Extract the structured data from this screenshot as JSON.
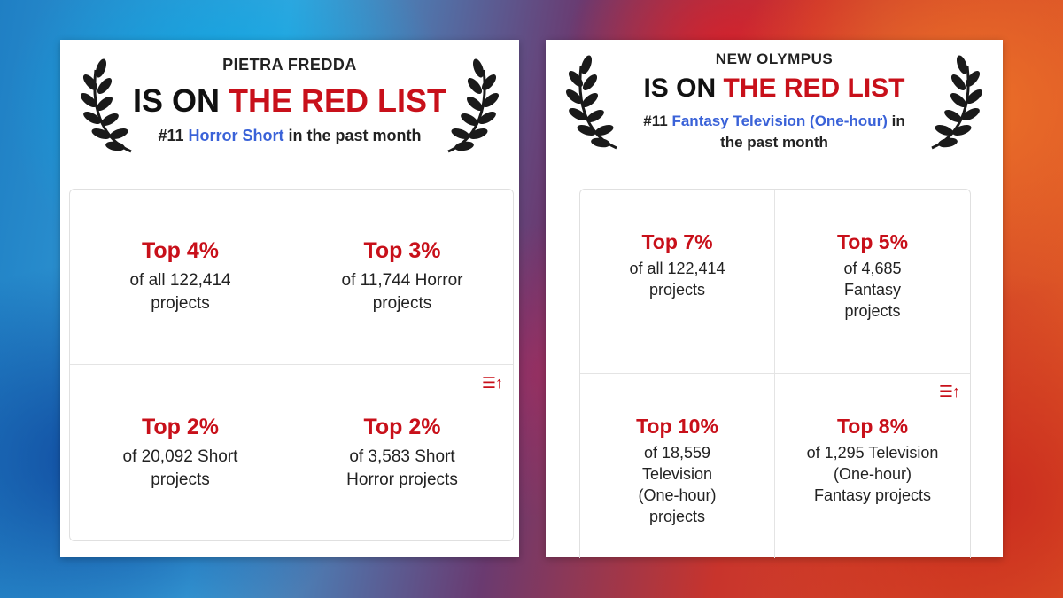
{
  "cards": [
    {
      "project_name": "PIETRA FREDDA",
      "headline_prefix": "IS ON",
      "headline_highlight": "THE RED LIST",
      "rank": "#11",
      "genre": "Horror Short",
      "period": "in the past month",
      "stats": [
        {
          "top": "Top 4%",
          "desc": "of all 122,414 projects"
        },
        {
          "top": "Top 3%",
          "desc": "of 11,744 Horror projects"
        },
        {
          "top": "Top 2%",
          "desc": "of 20,092 Short projects"
        },
        {
          "top": "Top 2%",
          "desc": "of 3,583 Short Horror projects"
        }
      ],
      "sort_icon": "sort-ascending-icon"
    },
    {
      "project_name": "NEW OLYMPUS",
      "headline_prefix": "IS ON",
      "headline_highlight": "THE RED LIST",
      "rank": "#11",
      "genre": "Fantasy Television (One-hour)",
      "period": "in the past month",
      "stats": [
        {
          "top": "Top 7%",
          "desc": "of all 122,414 projects"
        },
        {
          "top": "Top 5%",
          "desc": "of 4,685 Fantasy projects"
        },
        {
          "top": "Top 10%",
          "desc": "of 18,559 Television (One-hour) projects"
        },
        {
          "top": "Top 8%",
          "desc": "of 1,295 Television (One-hour) Fantasy projects"
        }
      ],
      "sort_icon": "sort-ascending-icon"
    }
  ],
  "colors": {
    "red": "#c8101a",
    "link_blue": "#3a62d8"
  }
}
